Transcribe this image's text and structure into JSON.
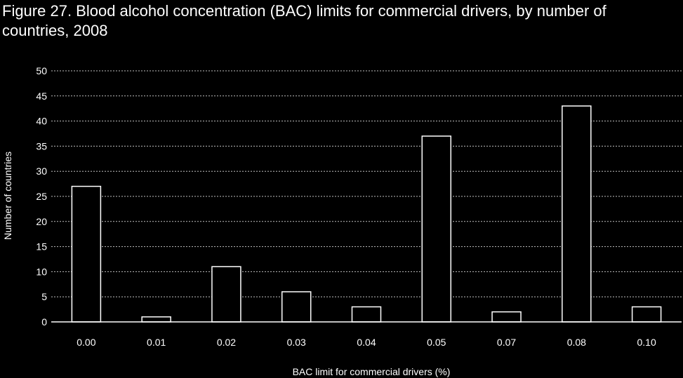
{
  "chart_data": {
    "type": "bar",
    "title": "Figure 27. Blood alcohol concentration (BAC) limits for commercial drivers, by number of countries, 2008",
    "xlabel": "BAC limit for commercial drivers (%)",
    "ylabel": "Number of countries",
    "categories": [
      "0.00",
      "0.01",
      "0.02",
      "0.03",
      "0.04",
      "0.05",
      "0.07",
      "0.08",
      "0.10"
    ],
    "values": [
      27,
      1,
      11,
      6,
      3,
      37,
      2,
      43,
      3
    ],
    "ylim": [
      0,
      50
    ],
    "yticks": [
      0,
      5,
      10,
      15,
      20,
      25,
      30,
      35,
      40,
      45,
      50
    ],
    "grid": true,
    "legend": "none",
    "colors": {
      "background": "#000000",
      "bar_fill": "#000000",
      "bar_stroke": "#ffffff",
      "text": "#ffffff"
    }
  }
}
